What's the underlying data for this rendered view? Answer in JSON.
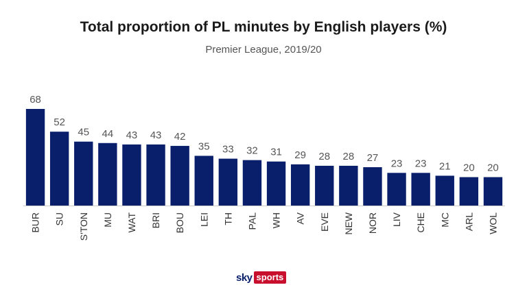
{
  "chart_data": {
    "type": "bar",
    "title": "Total proportion of PL minutes by English players (%)",
    "subtitle": "Premier League, 2019/20",
    "categories": [
      "BUR",
      "SU",
      "S'TON",
      "MU",
      "WAT",
      "BRI",
      "BOU",
      "LEI",
      "TH",
      "PAL",
      "WH",
      "AV",
      "EVE",
      "NEW",
      "NOR",
      "LIV",
      "CHE",
      "MC",
      "ARL",
      "WOL"
    ],
    "values": [
      68,
      52,
      45,
      44,
      43,
      43,
      42,
      35,
      33,
      32,
      31,
      29,
      28,
      28,
      27,
      23,
      23,
      21,
      20,
      20
    ],
    "ylim": [
      0,
      68
    ],
    "grid": false,
    "bar_color": "#0a1f6b",
    "xlabel": "",
    "ylabel": ""
  },
  "branding": {
    "logo_sky": "sky",
    "logo_sports": "sports",
    "sky_color": "#0a1f6b",
    "sports_color": "#c8102e"
  }
}
